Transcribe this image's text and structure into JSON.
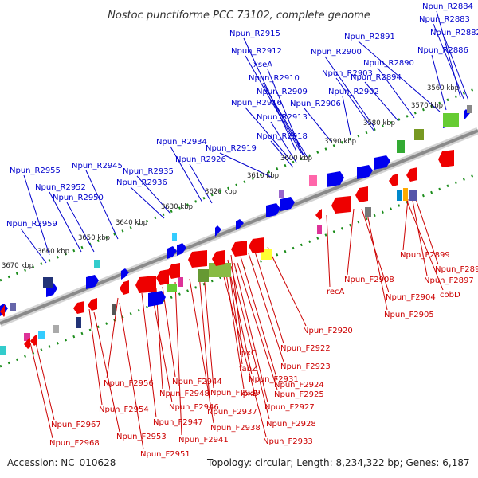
{
  "title": "Nostoc punctiforme PCC 73102, complete genome",
  "footer": {
    "accession": "Accession: NC_010628",
    "summary": "Topology: circular; Length: 8,234,322 bp; Genes: 6,187"
  },
  "colors": {
    "forward": "#0000ee",
    "reverse": "#ee0000",
    "backbone": "#808080",
    "tick": "#1a8c1a",
    "label_forward": "#0000cc",
    "label_reverse": "#cc0000"
  },
  "scale_ticks": [
    "3560 kbp",
    "3570 kbp",
    "3580 kbp",
    "3590 kbp",
    "3600 kbp",
    "3610 kbp",
    "3620 kbp",
    "3630 kbp",
    "3640 kbp",
    "3650 kbp",
    "3660 kbp",
    "3670 kbp"
  ],
  "forward_labels": [
    "Npun_R2884",
    "Npun_R2883",
    "Npun_R2882",
    "Npun_R2915",
    "Npun_R2891",
    "Npun_R2886",
    "Npun_R2912",
    "xseA",
    "Npun_R2900",
    "Npun_R2890",
    "Npun_R2910",
    "Npun_R2903",
    "Npun_R2894",
    "Npun_R2909",
    "Npun_R2902",
    "Npun_R2916",
    "Npun_R2906",
    "Npun_R2913",
    "Npun_R2918",
    "Npun_R2934",
    "Npun_R2919",
    "Npun_R2926",
    "Npun_R2955",
    "Npun_R2945",
    "Npun_R2935",
    "Npun_R2952",
    "Npun_R2936",
    "Npun_R2950",
    "Npun_R2959"
  ],
  "reverse_labels": [
    "Npun_F2899",
    "Npun_F2895",
    "Npun_F2897",
    "cobD",
    "Npun_F2908",
    "recA",
    "Npun_F2904",
    "Npun_F2905",
    "Npun_F2920",
    "lpxC",
    "Npun_F2922",
    "fabZ",
    "Npun_F2923",
    "Npun_F2931",
    "Npun_F2924",
    "lpxB",
    "Npun_F2925",
    "Npun_F2927",
    "Npun_F2928",
    "Npun_F2933",
    "Npun_F2939",
    "Npun_F2937",
    "Npun_F2938",
    "Npun_F2941",
    "Npun_F2944",
    "Npun_F2948",
    "Npun_F2946",
    "Npun_F2947",
    "Npun_F2956",
    "Npun_F2954",
    "Npun_F2953",
    "Npun_F2951",
    "Npun_F2967",
    "Npun_F2968"
  ]
}
